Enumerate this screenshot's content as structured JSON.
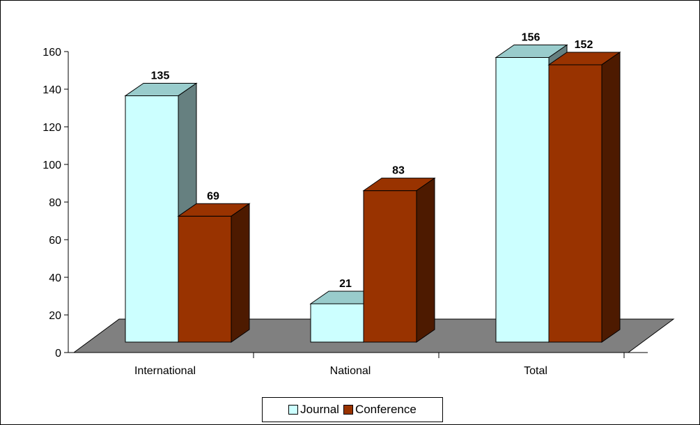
{
  "chart_data": {
    "type": "bar",
    "categories": [
      "International",
      "National",
      "Total"
    ],
    "series": [
      {
        "name": "Journal",
        "values": [
          135,
          21,
          156
        ],
        "color": "#ccffff",
        "top_color": "#99cccc",
        "side_color": "#668080"
      },
      {
        "name": "Conference",
        "values": [
          69,
          83,
          152
        ],
        "color": "#993300",
        "top_color": "#993300",
        "side_color": "#4d1a00"
      }
    ],
    "ylim": [
      0,
      160
    ],
    "yticks": [
      "0",
      "20",
      "40",
      "60",
      "80",
      "100",
      "120",
      "140",
      "160"
    ],
    "data_labels": [
      [
        "135",
        "69"
      ],
      [
        "21",
        "83"
      ],
      [
        "156",
        "152"
      ]
    ],
    "legend_position": "bottom",
    "floor_color": "#808080",
    "grid": false,
    "three_d": true
  }
}
